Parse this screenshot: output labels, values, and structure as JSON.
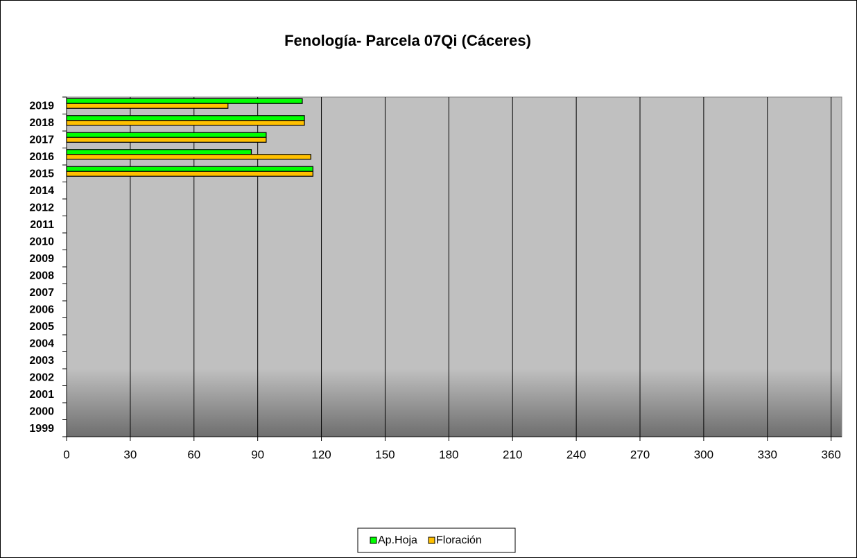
{
  "chart_data": {
    "type": "barh",
    "title": "Fenología- Parcela 07Qi (Cáceres)",
    "categories": [
      "2019",
      "2018",
      "2017",
      "2016",
      "2015",
      "2014",
      "2012",
      "2011",
      "2010",
      "2009",
      "2008",
      "2007",
      "2006",
      "2005",
      "2004",
      "2003",
      "2002",
      "2001",
      "2000",
      "1999"
    ],
    "series": [
      {
        "name": "Ap.Hoja",
        "color": "#00ff00",
        "values": [
          111,
          112,
          94,
          87,
          116,
          null,
          null,
          null,
          null,
          null,
          null,
          null,
          null,
          null,
          null,
          null,
          null,
          null,
          null,
          null
        ]
      },
      {
        "name": "Floración",
        "color": "#ffc000",
        "values": [
          76,
          112,
          94,
          115,
          116,
          null,
          null,
          null,
          null,
          null,
          null,
          null,
          null,
          null,
          null,
          null,
          null,
          null,
          null,
          null
        ]
      }
    ],
    "xlim": [
      0,
      365
    ],
    "xticks": [
      0,
      30,
      60,
      90,
      120,
      150,
      180,
      210,
      240,
      270,
      300,
      330,
      360
    ],
    "grid": true,
    "legend": "bottom"
  }
}
